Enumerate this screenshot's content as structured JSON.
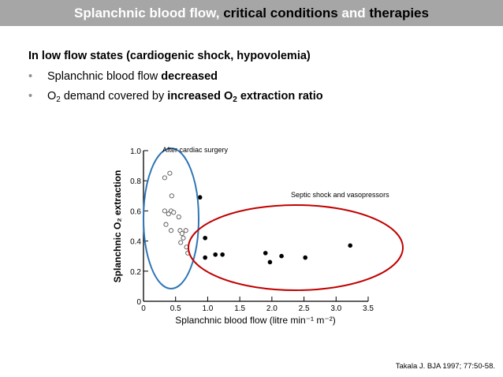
{
  "slide": {
    "title_part1": "Splanchnic blood flow, ",
    "title_part2": "critical conditions",
    "title_part3": " and ",
    "title_part4": "therapies",
    "heading": "In low flow states (cardiogenic shock, hypovolemia)",
    "bullet1_dot": "•",
    "bullet1_text": "Splanchnic blood flow ",
    "bullet1_bold": "decreased",
    "bullet2_dot": "•",
    "bullet2_o": "O",
    "bullet2_o_sub": "2",
    "bullet2_text": " demand covered by ",
    "bullet2_bold": "increased O",
    "bullet2_bold_sub": "2",
    "bullet2_bold_tail": " extraction ratio",
    "citation": "Takala J. BJA 1997; 77:50-58."
  },
  "colors": {
    "title_bg": "#a6a6a6",
    "blue_ellipse": "#2e75b6",
    "red_ellipse": "#c00000"
  },
  "chart_data": {
    "type": "scatter",
    "title": "",
    "xlabel": "Splanchnic blood flow (litre min⁻¹ m⁻²)",
    "ylabel": "Splanchnic O₂ extraction",
    "xlim": [
      0,
      3.5
    ],
    "ylim": [
      0,
      1.0
    ],
    "x_ticks": [
      0,
      0.5,
      1.0,
      1.5,
      2.0,
      2.5,
      3.0,
      3.5
    ],
    "x_tick_labels": [
      "0",
      "0.5",
      "1.0",
      "1.5",
      "2.0",
      "2.5",
      "3.0",
      "3.5"
    ],
    "y_ticks": [
      0,
      0.2,
      0.4,
      0.6,
      0.8,
      1.0
    ],
    "y_tick_labels": [
      "0",
      "0.2",
      "0.4",
      "0.6",
      "0.8",
      "1.0"
    ],
    "series": [
      {
        "name": "After cardiac surgery",
        "marker": "open",
        "points": [
          [
            0.33,
            0.82
          ],
          [
            0.41,
            0.85
          ],
          [
            0.44,
            0.7
          ],
          [
            0.43,
            0.6
          ],
          [
            0.47,
            0.59
          ],
          [
            0.33,
            0.6
          ],
          [
            0.39,
            0.58
          ],
          [
            0.55,
            0.56
          ],
          [
            0.35,
            0.51
          ],
          [
            0.43,
            0.47
          ],
          [
            0.57,
            0.47
          ],
          [
            0.6,
            0.45
          ],
          [
            0.66,
            0.47
          ],
          [
            0.62,
            0.42
          ],
          [
            0.58,
            0.39
          ],
          [
            0.67,
            0.36
          ],
          [
            0.69,
            0.32
          ]
        ]
      },
      {
        "name": "Septic shock and vasopressors",
        "marker": "filled",
        "points": [
          [
            0.88,
            0.69
          ],
          [
            0.96,
            0.42
          ],
          [
            0.96,
            0.29
          ],
          [
            1.12,
            0.31
          ],
          [
            1.23,
            0.31
          ],
          [
            1.9,
            0.32
          ],
          [
            1.97,
            0.26
          ],
          [
            2.15,
            0.3
          ],
          [
            2.52,
            0.29
          ],
          [
            3.22,
            0.37
          ]
        ]
      }
    ],
    "annotations": [
      "After cardiac surgery",
      "Septic shock and vasopressors"
    ]
  }
}
